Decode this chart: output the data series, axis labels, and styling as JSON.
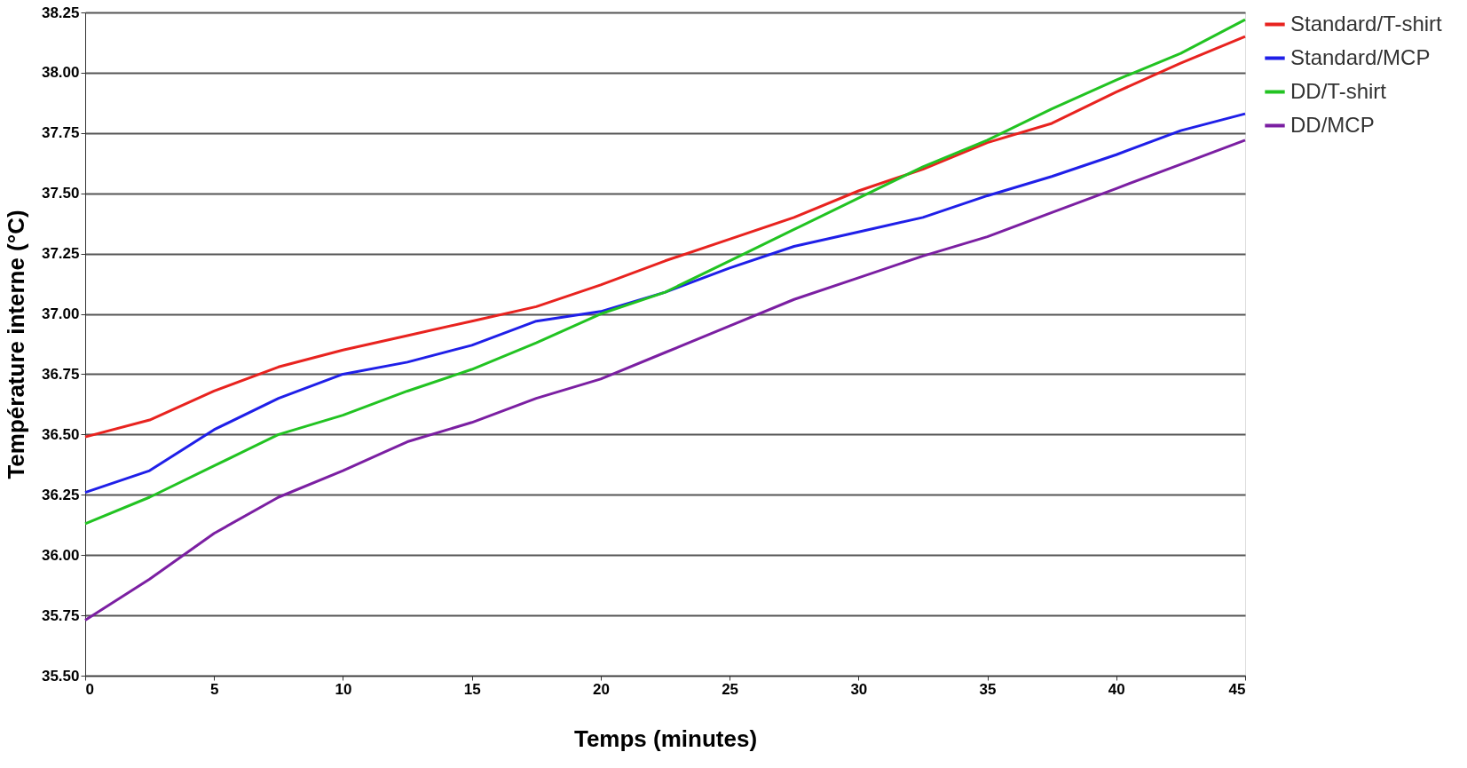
{
  "chart_data": {
    "type": "line",
    "xlabel": "Temps (minutes)",
    "ylabel": "Température interne (°C)",
    "x": [
      0,
      2.5,
      5,
      7.5,
      10,
      12.5,
      15,
      17.5,
      20,
      22.5,
      25,
      27.5,
      30,
      32.5,
      35,
      37.5,
      40,
      42.5,
      45
    ],
    "series": [
      {
        "name": "Standard/T-shirt",
        "color": "#e8231f",
        "values": [
          36.49,
          36.56,
          36.68,
          36.78,
          36.85,
          36.91,
          36.97,
          37.03,
          37.12,
          37.22,
          37.31,
          37.4,
          37.51,
          37.6,
          37.71,
          37.79,
          37.92,
          38.04,
          38.15
        ]
      },
      {
        "name": "Standard/MCP",
        "color": "#1f1fe8",
        "values": [
          36.26,
          36.35,
          36.52,
          36.65,
          36.75,
          36.8,
          36.87,
          36.97,
          37.01,
          37.09,
          37.19,
          37.28,
          37.34,
          37.4,
          37.49,
          37.57,
          37.66,
          37.76,
          37.83
        ]
      },
      {
        "name": "DD/T-shirt",
        "color": "#22c322",
        "values": [
          36.13,
          36.24,
          36.37,
          36.5,
          36.58,
          36.68,
          36.77,
          36.88,
          37.0,
          37.09,
          37.22,
          37.35,
          37.48,
          37.61,
          37.72,
          37.85,
          37.97,
          38.08,
          38.22
        ]
      },
      {
        "name": "DD/MCP",
        "color": "#7b1fa2",
        "values": [
          35.73,
          35.9,
          36.09,
          36.24,
          36.35,
          36.47,
          36.55,
          36.65,
          36.73,
          36.84,
          36.95,
          37.06,
          37.15,
          37.24,
          37.32,
          37.42,
          37.52,
          37.62,
          37.72
        ]
      }
    ],
    "xlim": [
      0,
      45
    ],
    "xticks": [
      0,
      5,
      10,
      15,
      20,
      25,
      30,
      35,
      40,
      45
    ],
    "ylim": [
      35.5,
      38.25
    ],
    "yticks": [
      {
        "value": 35.5,
        "label": "35.50"
      },
      {
        "value": 35.75,
        "label": "35.75"
      },
      {
        "value": 36,
        "label": "36.00"
      },
      {
        "value": 36.25,
        "label": "36.25"
      },
      {
        "value": 36.5,
        "label": "36.50"
      },
      {
        "value": 36.75,
        "label": "36.75"
      },
      {
        "value": 37,
        "label": "37.00"
      },
      {
        "value": 37.25,
        "label": "37.25"
      },
      {
        "value": 37.5,
        "label": "37.50"
      },
      {
        "value": 37.75,
        "label": "37.75"
      },
      {
        "value": 38,
        "label": "38.00"
      },
      {
        "value": 38.25,
        "label": "38.25"
      }
    ],
    "grid": "y",
    "legend": "right",
    "marker": "none",
    "line_style": "solid"
  }
}
